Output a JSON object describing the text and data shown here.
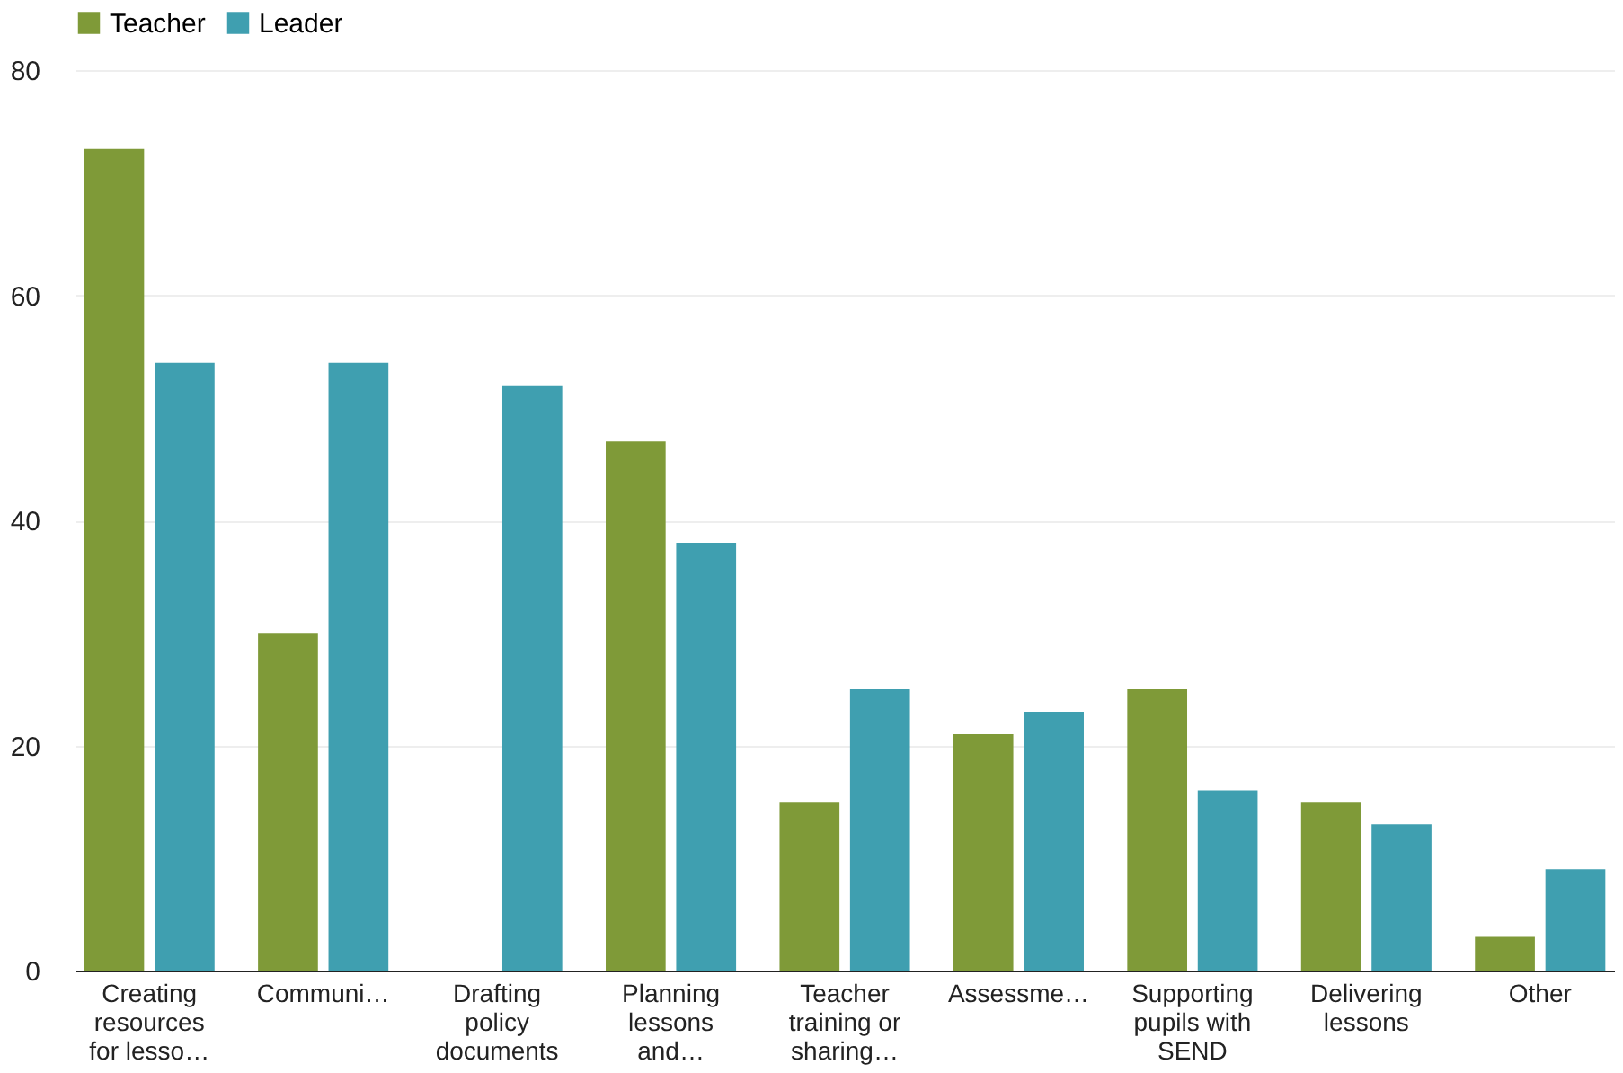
{
  "chart_data": {
    "type": "bar",
    "categories": [
      "Creating resources for lesso…",
      "Communi…",
      "Drafting policy documents",
      "Planning lessons and…",
      "Teacher training or sharing…",
      "Assessme…",
      "Supporting pupils with SEND",
      "Delivering lessons",
      "Other"
    ],
    "series": [
      {
        "name": "Teacher",
        "color": "#7f9a38",
        "values": [
          73,
          30,
          null,
          47,
          15,
          21,
          25,
          15,
          3
        ]
      },
      {
        "name": "Leader",
        "color": "#3f9fb0",
        "values": [
          54,
          54,
          52,
          38,
          25,
          23,
          16,
          13,
          9
        ]
      }
    ],
    "ylim": [
      0,
      80
    ],
    "yticks": [
      0,
      20,
      40,
      60,
      80
    ],
    "grid": "y",
    "legend": "top"
  }
}
